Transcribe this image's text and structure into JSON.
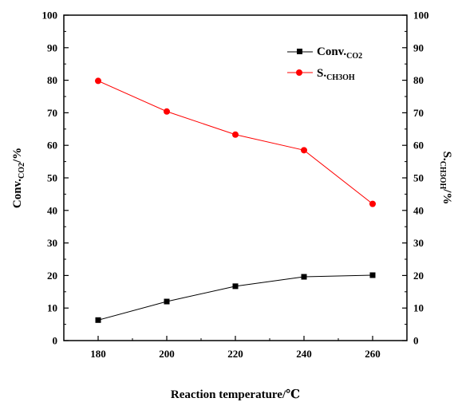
{
  "chart_data": {
    "type": "line",
    "x": [
      180,
      200,
      220,
      240,
      260
    ],
    "xlim": [
      170,
      270
    ],
    "xticks": [
      180,
      200,
      220,
      240,
      260
    ],
    "ylim": [
      0,
      100
    ],
    "yticks": [
      0,
      10,
      20,
      30,
      40,
      50,
      60,
      70,
      80,
      90,
      100
    ],
    "xlabel": "Reaction temperature/℃",
    "ylabel_left": {
      "main": "Conv.",
      "sub": "CO2",
      "suffix": "/%"
    },
    "ylabel_right": {
      "main": "S.",
      "sub": "CH3OH",
      "suffix": "/%"
    },
    "grid": false,
    "legend_position": "top-right",
    "series": [
      {
        "name": "Conv.CO2",
        "legend_main": "Conv.",
        "legend_sub": "CO2",
        "marker": "square",
        "color": "#000000",
        "values": [
          6.3,
          12.0,
          16.7,
          19.6,
          20.1
        ]
      },
      {
        "name": "S.CH3OH",
        "legend_main": "S.",
        "legend_sub": "CH3OH",
        "marker": "circle",
        "color": "#ff0000",
        "values": [
          79.8,
          70.4,
          63.3,
          58.5,
          42.0
        ]
      }
    ]
  }
}
